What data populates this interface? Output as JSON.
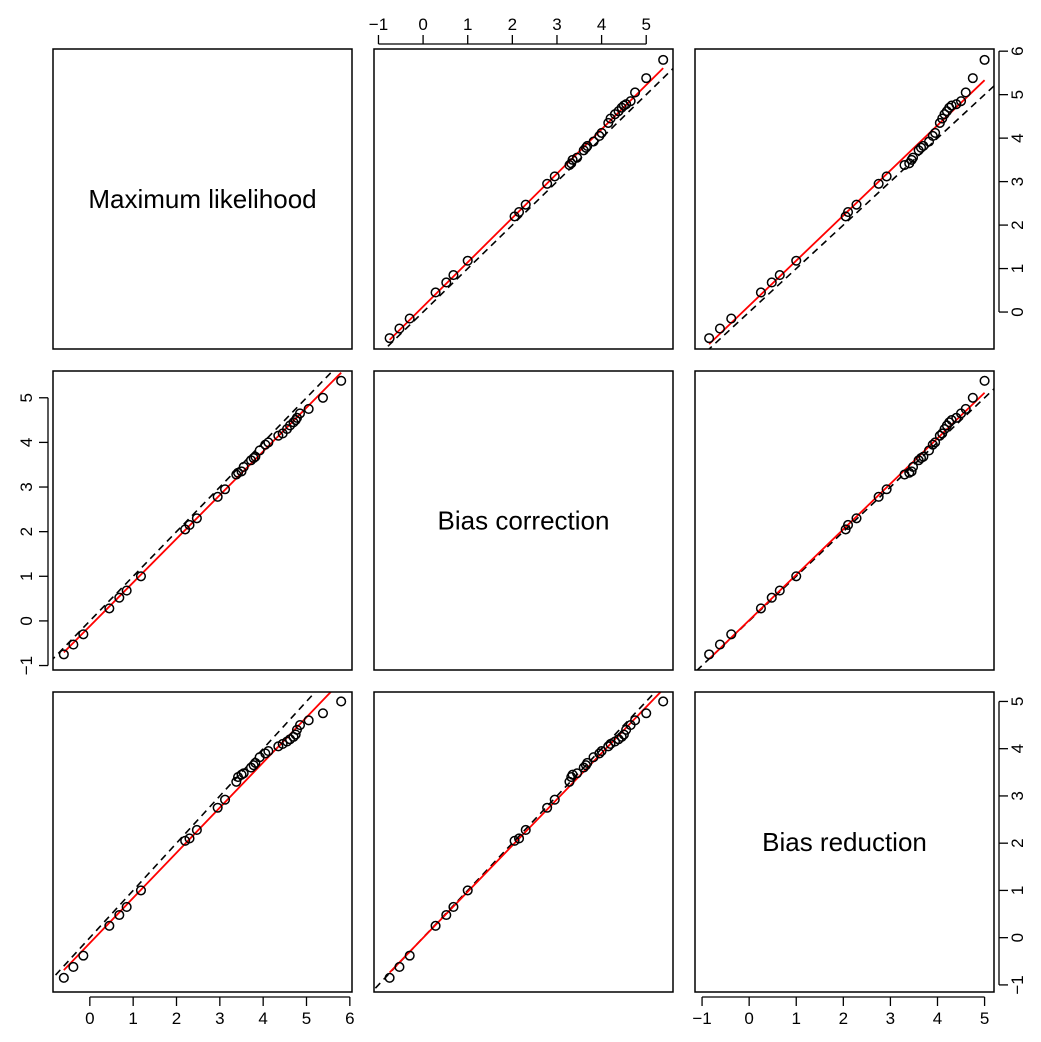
{
  "chart_data": {
    "type": "scatter",
    "layout": "pairs-matrix",
    "variables": [
      "Maximum likelihood",
      "Bias correction",
      "Bias reduction"
    ],
    "ticks": {
      "Maximum likelihood": [
        0,
        1,
        2,
        3,
        4,
        5,
        6
      ],
      "Bias correction": [
        -1,
        0,
        1,
        2,
        3,
        4,
        5
      ],
      "Bias reduction": [
        -1,
        0,
        1,
        2,
        3,
        4,
        5
      ]
    },
    "axis_ranges": {
      "Maximum likelihood": [
        -0.85,
        6.05
      ],
      "Bias correction": [
        -1.1,
        5.6
      ],
      "Bias reduction": [
        -1.15,
        5.2
      ]
    },
    "points": {
      "Maximum likelihood": [
        -0.6,
        -0.38,
        -0.15,
        0.45,
        0.68,
        0.85,
        1.18,
        2.2,
        2.3,
        2.47,
        2.95,
        3.12,
        3.38,
        3.42,
        3.5,
        3.55,
        3.72,
        3.78,
        3.82,
        3.92,
        4.05,
        4.12,
        4.35,
        4.45,
        4.55,
        4.62,
        4.7,
        4.75,
        4.78,
        4.85,
        5.05,
        5.38,
        5.8
      ],
      "Bias correction": [
        -0.75,
        -0.53,
        -0.3,
        0.28,
        0.52,
        0.68,
        1.0,
        2.05,
        2.15,
        2.3,
        2.78,
        2.95,
        3.28,
        3.32,
        3.35,
        3.45,
        3.6,
        3.65,
        3.68,
        3.82,
        3.95,
        4.0,
        4.15,
        4.2,
        4.3,
        4.38,
        4.45,
        4.5,
        4.55,
        4.65,
        4.75,
        5.0,
        5.38
      ],
      "Bias reduction": [
        -0.85,
        -0.62,
        -0.38,
        0.25,
        0.48,
        0.65,
        1.0,
        2.05,
        2.1,
        2.28,
        2.75,
        2.92,
        3.3,
        3.4,
        3.45,
        3.48,
        3.6,
        3.65,
        3.7,
        3.82,
        3.9,
        3.95,
        4.05,
        4.1,
        4.15,
        4.2,
        4.25,
        4.3,
        4.4,
        4.5,
        4.6,
        4.75,
        5.0
      ]
    },
    "reference_line": {
      "style": "dashed",
      "color": "#000000",
      "slope": 1,
      "intercept": 0
    },
    "fit_line": {
      "style": "solid",
      "color": "#ff0000"
    },
    "point_style": {
      "shape": "open-circle",
      "color": "#000000"
    }
  }
}
